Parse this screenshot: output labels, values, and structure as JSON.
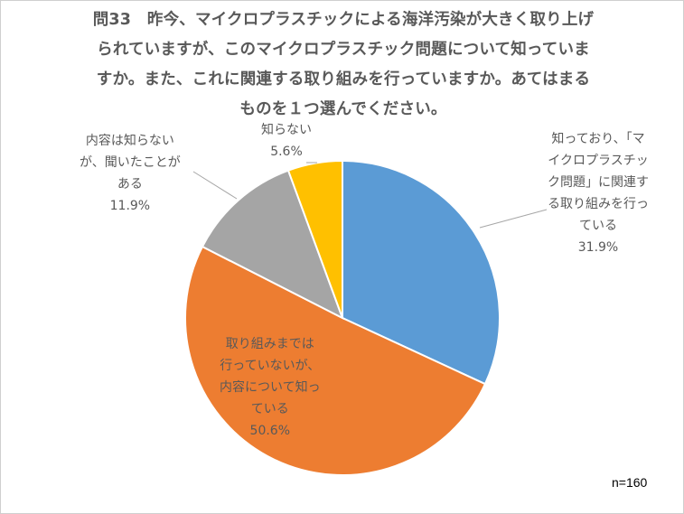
{
  "title_lines": [
    "問33　昨今、マイクロプラスチックによる海洋汚染が大きく取り上げ",
    "られていますが、このマイクロプラスチック問題について知っていま",
    "すか。また、これに関連する取り組みを行っていますか。あてはまる",
    "ものを１つ選んでください。"
  ],
  "n_label": "n=160",
  "chart_data": {
    "type": "pie",
    "title": "問33　昨今、マイクロプラスチックによる海洋汚染が大きく取り上げられていますが、このマイクロプラスチック問題について知っていますか。また、これに関連する取り組みを行っていますか。あてはまるものを１つ選んでください。",
    "unit": "%",
    "start": "12 o'clock",
    "direction": "clockwise",
    "slices": [
      {
        "label_lines": [
          "知っており、「マ",
          "イクロプラスチッ",
          "ク問題」に関連す",
          "る取り組みを行っ",
          "ている"
        ],
        "value": 31.9,
        "value_label": "31.9%",
        "color": "#5B9BD5"
      },
      {
        "label_lines": [
          "取り組みまでは",
          "行っていないが、",
          "内容について知っ",
          "ている"
        ],
        "value": 50.6,
        "value_label": "50.6%",
        "color": "#ED7D31"
      },
      {
        "label_lines": [
          "内容は知らない",
          "が、聞いたことが",
          "ある"
        ],
        "value": 11.9,
        "value_label": "11.9%",
        "color": "#A5A5A5"
      },
      {
        "label_lines": [
          "知らない"
        ],
        "value": 5.6,
        "value_label": "5.6%",
        "color": "#FFC000"
      }
    ]
  }
}
